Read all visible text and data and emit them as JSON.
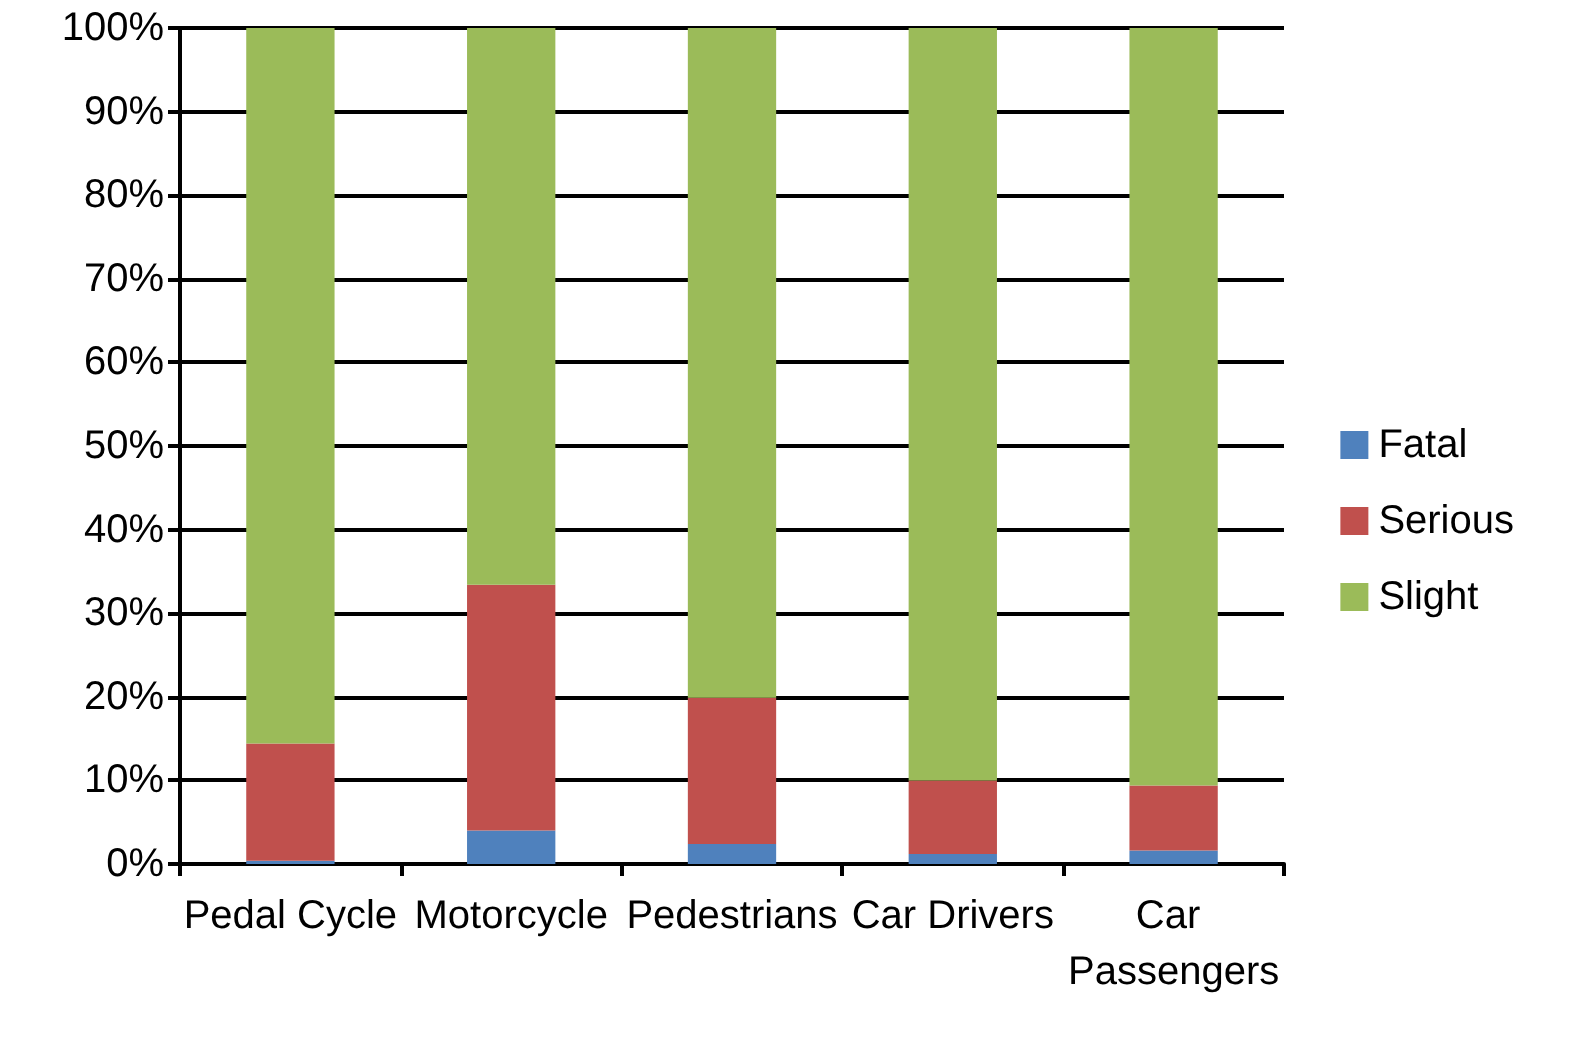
{
  "chart_data": {
    "type": "bar",
    "stacked": true,
    "categories": [
      "Pedal Cycle",
      "Motorcycle",
      "Pedestrians",
      "Car Drivers",
      "Car Passengers"
    ],
    "series": [
      {
        "name": "Fatal",
        "color": "#4f81bd",
        "values": [
          0.4,
          4.0,
          2.4,
          1.2,
          1.6
        ]
      },
      {
        "name": "Serious",
        "color": "#c0504d",
        "values": [
          14.0,
          29.4,
          17.5,
          8.8,
          7.8
        ]
      },
      {
        "name": "Slight",
        "color": "#9bbb59",
        "values": [
          85.6,
          66.6,
          80.1,
          90.0,
          90.6
        ]
      }
    ],
    "ylim": [
      0,
      100
    ],
    "yticks": [
      {
        "value": 0,
        "label": "0%"
      },
      {
        "value": 10,
        "label": "10%"
      },
      {
        "value": 20,
        "label": "20%"
      },
      {
        "value": 30,
        "label": "30%"
      },
      {
        "value": 40,
        "label": "40%"
      },
      {
        "value": 50,
        "label": "50%"
      },
      {
        "value": 60,
        "label": "60%"
      },
      {
        "value": 70,
        "label": "70%"
      },
      {
        "value": 80,
        "label": "80%"
      },
      {
        "value": 90,
        "label": "90%"
      },
      {
        "value": 100,
        "label": "100%"
      }
    ],
    "grid": "y",
    "legend": "right"
  }
}
